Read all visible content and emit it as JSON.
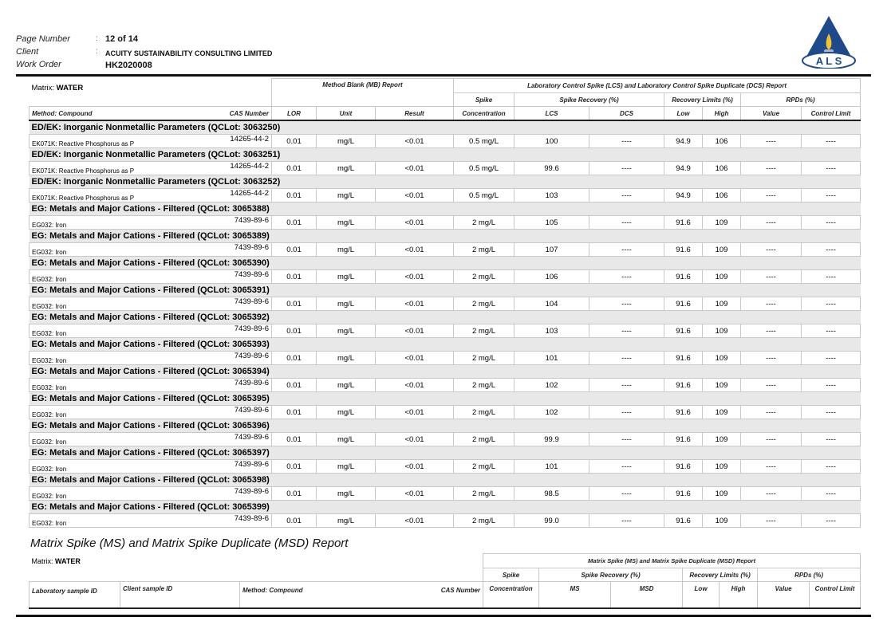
{
  "header": {
    "page_number_label": "Page Number",
    "page_number": "12 of 14",
    "client_label": "Client",
    "client": "ACUITY SUSTAINABILITY CONSULTING LIMITED",
    "work_order_label": "Work Order",
    "work_order": "HK2020008",
    "logo_text": "ALS"
  },
  "main_table": {
    "matrix_label": "Matrix: ",
    "matrix": "WATER",
    "mb_title": "Method Blank (MB) Report",
    "lcs_title": "Laboratory Control Spike (LCS) and Laboratory Control Spike Duplicate (DCS) Report",
    "col_method": "Method: Compound",
    "col_cas": "CAS Number",
    "col_lor": "LOR",
    "col_unit": "Unit",
    "col_result": "Result",
    "col_spike1": "Spike",
    "col_spike2": "Concentration",
    "col_spike_rec": "Spike Recovery (%)",
    "col_lcs": "LCS",
    "col_dcs": "DCS",
    "col_rec_limits": "Recovery Limits (%)",
    "col_low": "Low",
    "col_high": "High",
    "col_rpds": "RPDs (%)",
    "col_value": "Value",
    "col_control": "Control Limit",
    "groups": [
      {
        "title": "ED/EK: Inorganic Nonmetallic Parameters  (QCLot: 3063250)",
        "compound": "EK071K: Reactive Phosphorus as P",
        "cas": "14265-44-2",
        "lor": "0.01",
        "unit": "mg/L",
        "result": "<0.01",
        "spike": "0.5 mg/L",
        "lcs": "100",
        "dcs": "----",
        "low": "94.9",
        "high": "106",
        "value": "----",
        "control": "----"
      },
      {
        "title": "ED/EK: Inorganic Nonmetallic Parameters  (QCLot: 3063251)",
        "compound": "EK071K: Reactive Phosphorus as P",
        "cas": "14265-44-2",
        "lor": "0.01",
        "unit": "mg/L",
        "result": "<0.01",
        "spike": "0.5 mg/L",
        "lcs": "99.6",
        "dcs": "----",
        "low": "94.9",
        "high": "106",
        "value": "----",
        "control": "----"
      },
      {
        "title": "ED/EK: Inorganic Nonmetallic Parameters  (QCLot: 3063252)",
        "compound": "EK071K: Reactive Phosphorus as P",
        "cas": "14265-44-2",
        "lor": "0.01",
        "unit": "mg/L",
        "result": "<0.01",
        "spike": "0.5 mg/L",
        "lcs": "103",
        "dcs": "----",
        "low": "94.9",
        "high": "106",
        "value": "----",
        "control": "----"
      },
      {
        "title": "EG: Metals and Major Cations - Filtered  (QCLot: 3065388)",
        "compound": "EG032: Iron",
        "cas": "7439-89-6",
        "lor": "0.01",
        "unit": "mg/L",
        "result": "<0.01",
        "spike": "2 mg/L",
        "lcs": "105",
        "dcs": "----",
        "low": "91.6",
        "high": "109",
        "value": "----",
        "control": "----"
      },
      {
        "title": "EG: Metals and Major Cations - Filtered  (QCLot: 3065389)",
        "compound": "EG032: Iron",
        "cas": "7439-89-6",
        "lor": "0.01",
        "unit": "mg/L",
        "result": "<0.01",
        "spike": "2 mg/L",
        "lcs": "107",
        "dcs": "----",
        "low": "91.6",
        "high": "109",
        "value": "----",
        "control": "----"
      },
      {
        "title": "EG: Metals and Major Cations - Filtered  (QCLot: 3065390)",
        "compound": "EG032: Iron",
        "cas": "7439-89-6",
        "lor": "0.01",
        "unit": "mg/L",
        "result": "<0.01",
        "spike": "2 mg/L",
        "lcs": "106",
        "dcs": "----",
        "low": "91.6",
        "high": "109",
        "value": "----",
        "control": "----"
      },
      {
        "title": "EG: Metals and Major Cations - Filtered  (QCLot: 3065391)",
        "compound": "EG032: Iron",
        "cas": "7439-89-6",
        "lor": "0.01",
        "unit": "mg/L",
        "result": "<0.01",
        "spike": "2 mg/L",
        "lcs": "104",
        "dcs": "----",
        "low": "91.6",
        "high": "109",
        "value": "----",
        "control": "----"
      },
      {
        "title": "EG: Metals and Major Cations - Filtered  (QCLot: 3065392)",
        "compound": "EG032: Iron",
        "cas": "7439-89-6",
        "lor": "0.01",
        "unit": "mg/L",
        "result": "<0.01",
        "spike": "2 mg/L",
        "lcs": "103",
        "dcs": "----",
        "low": "91.6",
        "high": "109",
        "value": "----",
        "control": "----"
      },
      {
        "title": "EG: Metals and Major Cations - Filtered  (QCLot: 3065393)",
        "compound": "EG032: Iron",
        "cas": "7439-89-6",
        "lor": "0.01",
        "unit": "mg/L",
        "result": "<0.01",
        "spike": "2 mg/L",
        "lcs": "101",
        "dcs": "----",
        "low": "91.6",
        "high": "109",
        "value": "----",
        "control": "----"
      },
      {
        "title": "EG: Metals and Major Cations - Filtered  (QCLot: 3065394)",
        "compound": "EG032: Iron",
        "cas": "7439-89-6",
        "lor": "0.01",
        "unit": "mg/L",
        "result": "<0.01",
        "spike": "2 mg/L",
        "lcs": "102",
        "dcs": "----",
        "low": "91.6",
        "high": "109",
        "value": "----",
        "control": "----"
      },
      {
        "title": "EG: Metals and Major Cations - Filtered  (QCLot: 3065395)",
        "compound": "EG032: Iron",
        "cas": "7439-89-6",
        "lor": "0.01",
        "unit": "mg/L",
        "result": "<0.01",
        "spike": "2 mg/L",
        "lcs": "102",
        "dcs": "----",
        "low": "91.6",
        "high": "109",
        "value": "----",
        "control": "----"
      },
      {
        "title": "EG: Metals and Major Cations - Filtered  (QCLot: 3065396)",
        "compound": "EG032: Iron",
        "cas": "7439-89-6",
        "lor": "0.01",
        "unit": "mg/L",
        "result": "<0.01",
        "spike": "2 mg/L",
        "lcs": "99.9",
        "dcs": "----",
        "low": "91.6",
        "high": "109",
        "value": "----",
        "control": "----"
      },
      {
        "title": "EG: Metals and Major Cations - Filtered  (QCLot: 3065397)",
        "compound": "EG032: Iron",
        "cas": "7439-89-6",
        "lor": "0.01",
        "unit": "mg/L",
        "result": "<0.01",
        "spike": "2 mg/L",
        "lcs": "101",
        "dcs": "----",
        "low": "91.6",
        "high": "109",
        "value": "----",
        "control": "----"
      },
      {
        "title": "EG: Metals and Major Cations - Filtered  (QCLot: 3065398)",
        "compound": "EG032: Iron",
        "cas": "7439-89-6",
        "lor": "0.01",
        "unit": "mg/L",
        "result": "<0.01",
        "spike": "2 mg/L",
        "lcs": "98.5",
        "dcs": "----",
        "low": "91.6",
        "high": "109",
        "value": "----",
        "control": "----"
      },
      {
        "title": "EG: Metals and Major Cations - Filtered  (QCLot: 3065399)",
        "compound": "EG032: Iron",
        "cas": "7439-89-6",
        "lor": "0.01",
        "unit": "mg/L",
        "result": "<0.01",
        "spike": "2 mg/L",
        "lcs": "99.0",
        "dcs": "----",
        "low": "91.6",
        "high": "109",
        "value": "----",
        "control": "----"
      }
    ]
  },
  "ms_section": {
    "heading": "Matrix Spike (MS) and Matrix Spike Duplicate (MSD) Report",
    "matrix_label": "Matrix: ",
    "matrix": "WATER",
    "table_title": "Matrix Spike (MS) and Matrix Spike Duplicate (MSD) Report",
    "col_lab_id": "Laboratory sample ID",
    "col_client_id": "Client sample ID",
    "col_method": "Method: Compound",
    "col_cas": "CAS Number",
    "col_spike1": "Spike",
    "col_spike2": "Concentration",
    "col_spike_rec": "Spike Recovery (%)",
    "col_ms": "MS",
    "col_msd": "MSD",
    "col_rec_limits": "Recovery Limits (%)",
    "col_low": "Low",
    "col_high": "High",
    "col_rpds": "RPDs (%)",
    "col_value": "Value",
    "col_control": "Control Limit"
  }
}
